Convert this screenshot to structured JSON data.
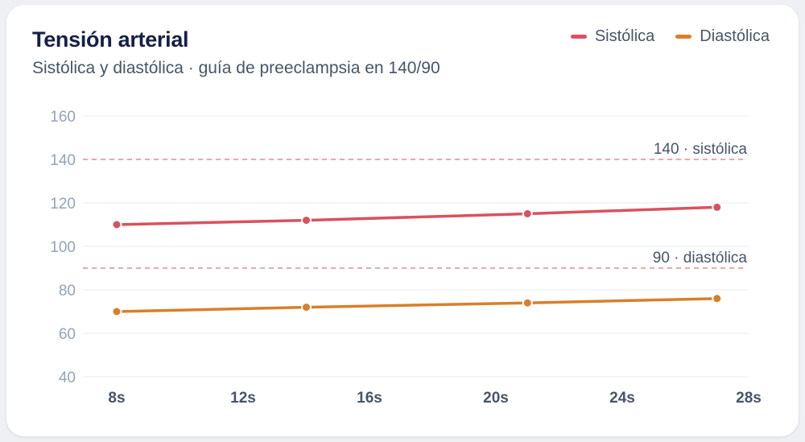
{
  "card": {
    "title": "Tensión arterial",
    "subtitle": "Sistólica y diastólica · guía de preeclampsia en 140/90"
  },
  "legend": [
    {
      "label": "Sistólica",
      "color": "#d9525e"
    },
    {
      "label": "Diastólica",
      "color": "#d97f2a"
    }
  ],
  "chart_data": {
    "type": "line",
    "title": "Tensión arterial",
    "subtitle": "Sistólica y diastólica · guía de preeclampsia en 140/90",
    "xlabel": "",
    "ylabel": "",
    "x_ticks": [
      "8s",
      "12s",
      "16s",
      "20s",
      "24s",
      "28s"
    ],
    "x_tick_values": [
      8,
      12,
      16,
      20,
      24,
      28
    ],
    "y_ticks": [
      40,
      60,
      80,
      100,
      120,
      140,
      160
    ],
    "xlim": [
      8,
      28
    ],
    "ylim": [
      40,
      160
    ],
    "grid": true,
    "legend_position": "top-right",
    "series": [
      {
        "name": "Sistólica",
        "color": "#d9525e",
        "x": [
          8,
          14,
          21,
          27
        ],
        "y": [
          110,
          112,
          115,
          118
        ]
      },
      {
        "name": "Diastólica",
        "color": "#d97f2a",
        "x": [
          8,
          14,
          21,
          27
        ],
        "y": [
          70,
          72,
          74,
          76
        ]
      }
    ],
    "reference_lines": [
      {
        "y": 140,
        "label": "140 · sistólica",
        "color": "#e58a93"
      },
      {
        "y": 90,
        "label": "90 · diastólica",
        "color": "#e58a93"
      }
    ]
  }
}
